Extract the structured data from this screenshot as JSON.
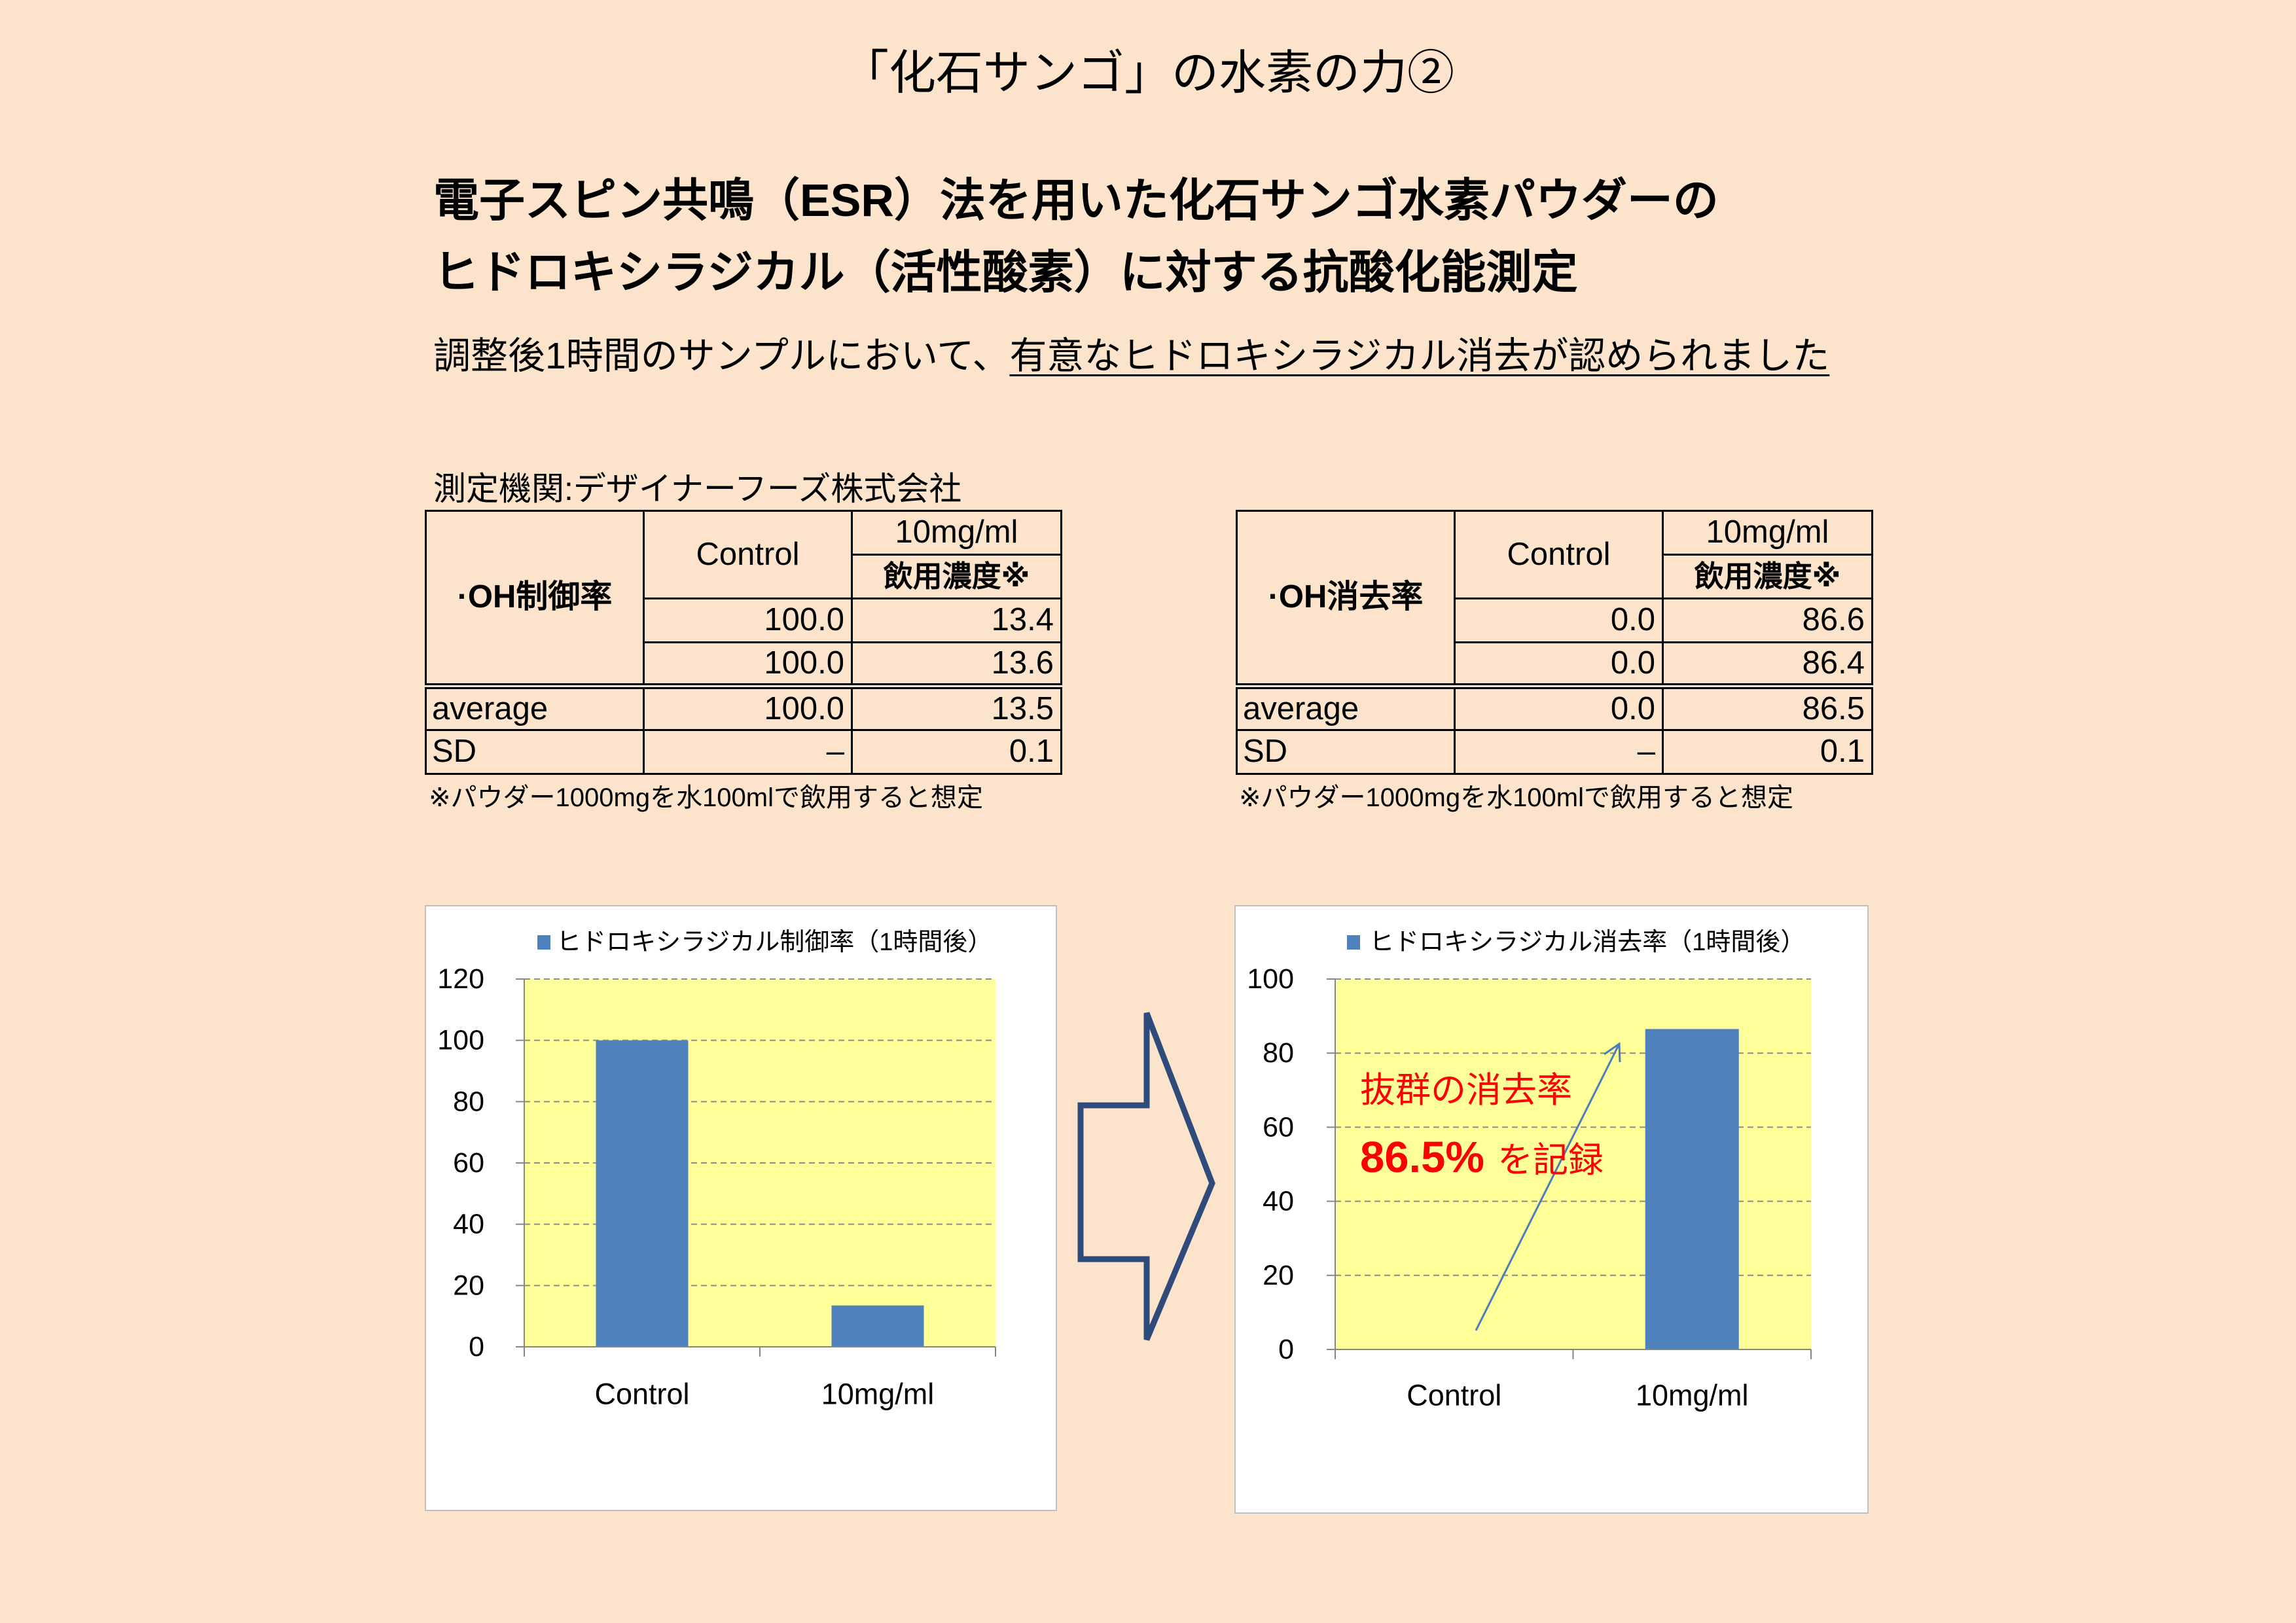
{
  "page": {
    "title": "「化石サンゴ」の水素の力②",
    "heading_line1": "電子スピン共鳴（ESR）法を用いた化石サンゴ水素パウダーの",
    "heading_line2": "ヒドロキシラジカル（活性酸素）に対する抗酸化能測定",
    "summary_plain": "調整後1時間のサンプルにおいて、",
    "summary_underlined": "有意なヒドロキシラジカル消去が認められました",
    "institution": "測定機関:デザイナーフーズ株式会社"
  },
  "tables": [
    {
      "row_header": "·OH制御率",
      "col_control": "Control",
      "col_dose": "10mg/ml",
      "col_dose_note": "飲用濃度※",
      "rows": [
        [
          "100.0",
          "13.4"
        ],
        [
          "100.0",
          "13.6"
        ]
      ],
      "average": {
        "label": "average",
        "control": "100.0",
        "dose": "13.5"
      },
      "sd": {
        "label": "SD",
        "control": "–",
        "dose": "0.1"
      },
      "footnote": "※パウダー1000mgを水100mlで飲用すると想定"
    },
    {
      "row_header": "·OH消去率",
      "col_control": "Control",
      "col_dose": "10mg/ml",
      "col_dose_note": "飲用濃度※",
      "rows": [
        [
          "0.0",
          "86.6"
        ],
        [
          "0.0",
          "86.4"
        ]
      ],
      "average": {
        "label": "average",
        "control": "0.0",
        "dose": "86.5"
      },
      "sd": {
        "label": "SD",
        "control": "–",
        "dose": "0.1"
      },
      "footnote": "※パウダー1000mgを水100mlで飲用すると想定"
    }
  ],
  "colors": {
    "page_background": "#FCE4CC",
    "plot_background": "#FFFF99",
    "bar": "#4F81BD",
    "annotation_text": "#FF0000",
    "block_arrow": "#2F4B7C",
    "trend_arrow": "#4A7EBB"
  },
  "chart_data": [
    {
      "type": "bar",
      "categories": [
        "Control",
        "10mg/ml"
      ],
      "series": [
        {
          "name": "ヒドロキシラジカル制御率（1時間後）",
          "values": [
            100.0,
            13.5
          ]
        }
      ],
      "ylim": [
        0,
        120
      ],
      "yticks": [
        0,
        20,
        40,
        60,
        80,
        100,
        120
      ],
      "grid": true,
      "legend": "top"
    },
    {
      "type": "bar",
      "categories": [
        "Control",
        "10mg/ml"
      ],
      "series": [
        {
          "name": "ヒドロキシラジカル消去率（1時間後）",
          "values": [
            0.0,
            86.5
          ]
        }
      ],
      "ylim": [
        0,
        100
      ],
      "yticks": [
        0,
        20,
        40,
        60,
        80,
        100
      ],
      "grid": true,
      "legend": "top",
      "annotation": {
        "line1": "抜群の消去率",
        "highlight": "86.5%",
        "suffix": "を記録"
      }
    }
  ]
}
